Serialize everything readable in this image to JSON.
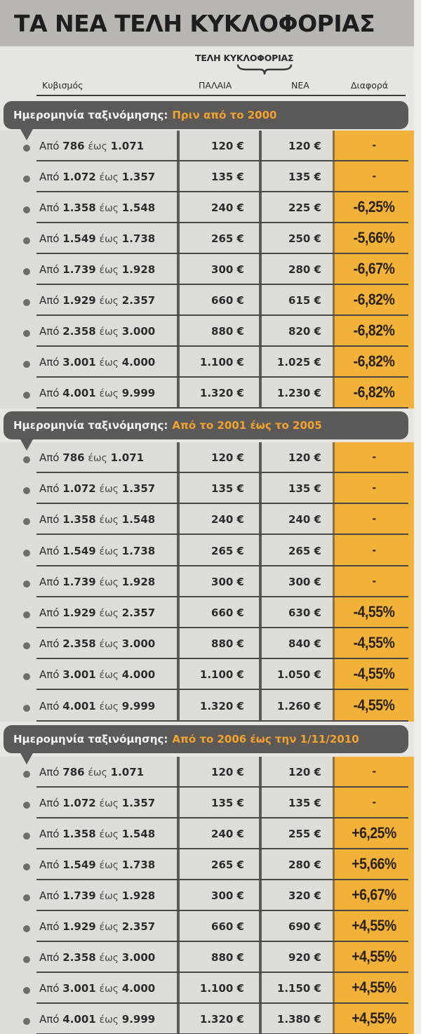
{
  "title": "ΤΑ ΝΕΑ ΤΕΛΗ ΚΥΚΛΟΦΟΡΙΑΣ",
  "columns": {
    "group_label": "ΤΕΛΗ ΚΥΚΛΟΦΟΡΙΑΣ",
    "cc": "Κυβισμός",
    "old": "ΠΑΛΑΙΑ",
    "new": "ΝΕΑ",
    "diff": "Διαφορά"
  },
  "colors": {
    "title_bg": "#b9b6b1",
    "section_bg": "#5b5a58",
    "section_highlight": "#f2a22e",
    "diff_col_bg": "#f2b23a",
    "cell_bg": "#dedcd7"
  },
  "sections": [
    {
      "label": "Ημερομηνία ταξινόμησης:",
      "highlight": "Πριν από το 2000",
      "rows": [
        {
          "from_word": "Από",
          "from": "786",
          "to_word": "έως",
          "to": "1.071",
          "old": "120 €",
          "new": "120 €",
          "diff": "-"
        },
        {
          "from_word": "Από",
          "from": "1.072",
          "to_word": "έως",
          "to": "1.357",
          "old": "135 €",
          "new": "135 €",
          "diff": "-"
        },
        {
          "from_word": "Από",
          "from": "1.358",
          "to_word": "έως",
          "to": "1.548",
          "old": "240 €",
          "new": "225 €",
          "diff": "-6,25%"
        },
        {
          "from_word": "Από",
          "from": "1.549",
          "to_word": "έως",
          "to": "1.738",
          "old": "265 €",
          "new": "250 €",
          "diff": "-5,66%"
        },
        {
          "from_word": "Από",
          "from": "1.739",
          "to_word": "έως",
          "to": "1.928",
          "old": "300 €",
          "new": "280 €",
          "diff": "-6,67%"
        },
        {
          "from_word": "Από",
          "from": "1.929",
          "to_word": "έως",
          "to": "2.357",
          "old": "660 €",
          "new": "615 €",
          "diff": "-6,82%"
        },
        {
          "from_word": "Από",
          "from": "2.358",
          "to_word": "έως",
          "to": "3.000",
          "old": "880 €",
          "new": "820 €",
          "diff": "-6,82%"
        },
        {
          "from_word": "Από",
          "from": "3.001",
          "to_word": "έως",
          "to": "4.000",
          "old": "1.100 €",
          "new": "1.025 €",
          "diff": "-6,82%"
        },
        {
          "from_word": "Από",
          "from": "4.001",
          "to_word": "έως",
          "to": "9.999",
          "old": "1.320 €",
          "new": "1.230 €",
          "diff": "-6,82%"
        }
      ]
    },
    {
      "label": "Ημερομηνία ταξινόμησης:",
      "highlight": "Από το 2001 έως το 2005",
      "rows": [
        {
          "from_word": "Από",
          "from": "786",
          "to_word": "έως",
          "to": "1.071",
          "old": "120 €",
          "new": "120 €",
          "diff": "-"
        },
        {
          "from_word": "Από",
          "from": "1.072",
          "to_word": "έως",
          "to": "1.357",
          "old": "135 €",
          "new": "135 €",
          "diff": "-"
        },
        {
          "from_word": "Από",
          "from": "1.358",
          "to_word": "έως",
          "to": "1.548",
          "old": "240 €",
          "new": "240 €",
          "diff": "-"
        },
        {
          "from_word": "Από",
          "from": "1.549",
          "to_word": "έως",
          "to": "1.738",
          "old": "265 €",
          "new": "265 €",
          "diff": "-"
        },
        {
          "from_word": "Από",
          "from": "1.739",
          "to_word": "έως",
          "to": "1.928",
          "old": "300 €",
          "new": "300 €",
          "diff": "-"
        },
        {
          "from_word": "Από",
          "from": "1.929",
          "to_word": "έως",
          "to": "2.357",
          "old": "660 €",
          "new": "630 €",
          "diff": "-4,55%"
        },
        {
          "from_word": "Από",
          "from": "2.358",
          "to_word": "έως",
          "to": "3.000",
          "old": "880 €",
          "new": "840 €",
          "diff": "-4,55%"
        },
        {
          "from_word": "Από",
          "from": "3.001",
          "to_word": "έως",
          "to": "4.000",
          "old": "1.100 €",
          "new": "1.050 €",
          "diff": "-4,55%"
        },
        {
          "from_word": "Από",
          "from": "4.001",
          "to_word": "έως",
          "to": "9.999",
          "old": "1.320 €",
          "new": "1.260 €",
          "diff": "-4,55%"
        }
      ]
    },
    {
      "label": "Ημερομηνία ταξινόμησης:",
      "highlight": "Από το 2006 έως την 1/11/2010",
      "rows": [
        {
          "from_word": "Από",
          "from": "786",
          "to_word": "έως",
          "to": "1.071",
          "old": "120 €",
          "new": "120 €",
          "diff": "-"
        },
        {
          "from_word": "Από",
          "from": "1.072",
          "to_word": "έως",
          "to": "1.357",
          "old": "135 €",
          "new": "135 €",
          "diff": "-"
        },
        {
          "from_word": "Από",
          "from": "1.358",
          "to_word": "έως",
          "to": "1.548",
          "old": "240 €",
          "new": "255 €",
          "diff": "+6,25%"
        },
        {
          "from_word": "Από",
          "from": "1.549",
          "to_word": "έως",
          "to": "1.738",
          "old": "265 €",
          "new": "280 €",
          "diff": "+5,66%"
        },
        {
          "from_word": "Από",
          "from": "1.739",
          "to_word": "έως",
          "to": "1.928",
          "old": "300 €",
          "new": "320 €",
          "diff": "+6,67%"
        },
        {
          "from_word": "Από",
          "from": "1.929",
          "to_word": "έως",
          "to": "2.357",
          "old": "660 €",
          "new": "690 €",
          "diff": "+4,55%"
        },
        {
          "from_word": "Από",
          "from": "2.358",
          "to_word": "έως",
          "to": "3.000",
          "old": "880 €",
          "new": "920 €",
          "diff": "+4,55%"
        },
        {
          "from_word": "Από",
          "from": "3.001",
          "to_word": "έως",
          "to": "4.000",
          "old": "1.100 €",
          "new": "1.150 €",
          "diff": "+4,55%"
        },
        {
          "from_word": "Από",
          "from": "4.001",
          "to_word": "έως",
          "to": "9.999",
          "old": "1.320 €",
          "new": "1.380 €",
          "diff": "+4,55%"
        }
      ]
    }
  ]
}
